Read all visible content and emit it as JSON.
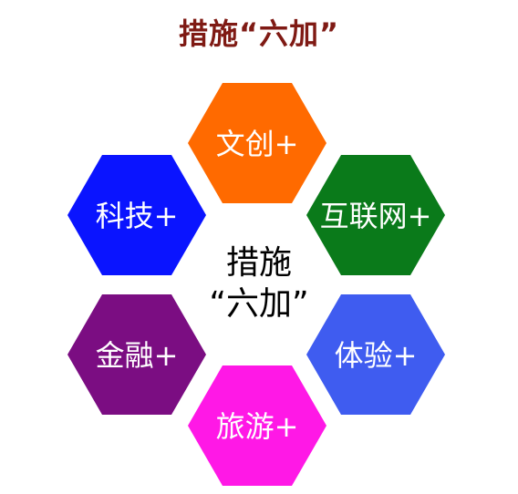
{
  "title": "措施“六加”",
  "center": {
    "line1": "措施",
    "line2": "“六加”"
  },
  "hexagons": [
    {
      "key": "top",
      "label": "文创+",
      "color": "#ff6a00"
    },
    {
      "key": "upper-left",
      "label": "科技+",
      "color": "#0a14ff"
    },
    {
      "key": "upper-right",
      "label": "互联网+",
      "color": "#0a7a1a"
    },
    {
      "key": "lower-left",
      "label": "金融+",
      "color": "#7b0d82"
    },
    {
      "key": "lower-right",
      "label": "体验+",
      "color": "#3f5cf0"
    },
    {
      "key": "bottom",
      "label": "旅游+",
      "color": "#ff18e6"
    }
  ]
}
